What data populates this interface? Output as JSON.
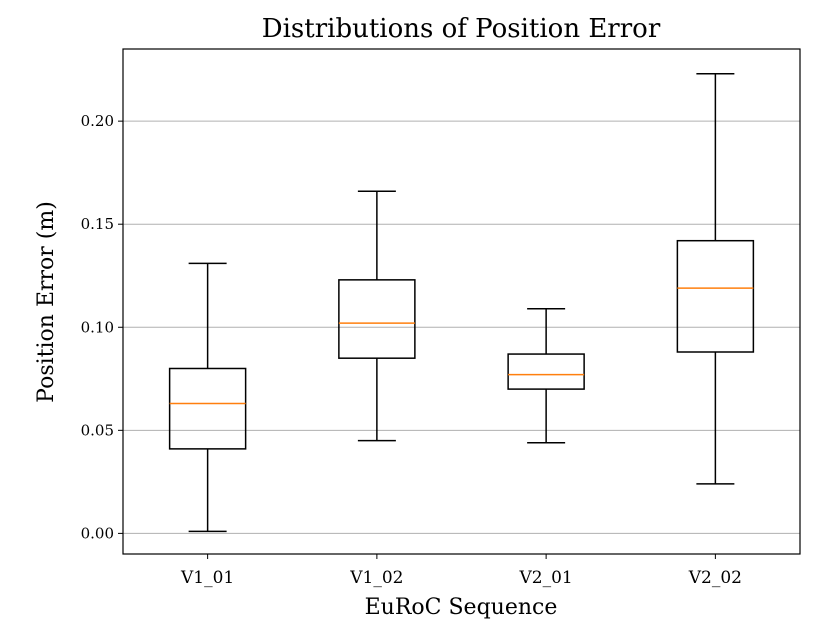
{
  "chart_data": {
    "type": "box",
    "title": "Distributions of Position Error",
    "xlabel": "EuRoC Sequence",
    "ylabel": "Position Error (m)",
    "ylim": [
      -0.01,
      0.235
    ],
    "yticks": [
      0.0,
      0.05,
      0.1,
      0.15,
      0.2
    ],
    "ytick_labels": [
      "0.00",
      "0.05",
      "0.10",
      "0.15",
      "0.20"
    ],
    "grid": "horizontal",
    "categories": [
      "V1_01",
      "V1_02",
      "V2_01",
      "V2_02"
    ],
    "boxes": [
      {
        "min": 0.001,
        "q1": 0.041,
        "median": 0.063,
        "q3": 0.08,
        "max": 0.131
      },
      {
        "min": 0.045,
        "q1": 0.085,
        "median": 0.102,
        "q3": 0.123,
        "max": 0.166
      },
      {
        "min": 0.044,
        "q1": 0.07,
        "median": 0.077,
        "q3": 0.087,
        "max": 0.109
      },
      {
        "min": 0.024,
        "q1": 0.088,
        "median": 0.119,
        "q3": 0.142,
        "max": 0.223
      }
    ],
    "colors": {
      "box": "#000000",
      "median": "#ff7f0e",
      "grid": "#b0b0b0"
    }
  }
}
